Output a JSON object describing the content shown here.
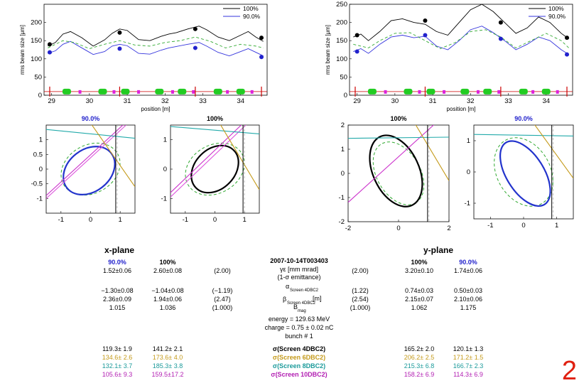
{
  "chart_data": [
    {
      "type": "line",
      "plane": "x",
      "ylabel": "rms beam size [μm]",
      "xlabel": "position [m]",
      "xlim": [
        28.8,
        34.7
      ],
      "ylim": [
        0,
        250
      ],
      "xticks": [
        "29",
        "30",
        "31",
        "32",
        "33",
        "34"
      ],
      "yticks": [
        "0",
        "50",
        "100",
        "150",
        "200"
      ],
      "legend": [
        "100%",
        "90.0%"
      ],
      "series": [
        {
          "name": "100%",
          "color": "#000000",
          "x": [
            28.9,
            29.1,
            29.3,
            29.5,
            29.8,
            30.1,
            30.4,
            30.6,
            30.8,
            31.0,
            31.3,
            31.6,
            31.9,
            32.1,
            32.3,
            32.6,
            32.9,
            33.1,
            33.4,
            33.7,
            34.0,
            34.2,
            34.4,
            34.6
          ],
          "values": [
            135,
            145,
            168,
            175,
            158,
            135,
            152,
            170,
            182,
            178,
            153,
            150,
            162,
            168,
            172,
            182,
            190,
            180,
            160,
            150,
            165,
            175,
            160,
            148
          ]
        },
        {
          "name": "90.0%",
          "color": "#3333dd",
          "x": [
            28.9,
            29.1,
            29.3,
            29.5,
            29.8,
            30.1,
            30.4,
            30.6,
            30.8,
            31.0,
            31.3,
            31.6,
            31.9,
            32.1,
            32.3,
            32.6,
            32.9,
            33.1,
            33.4,
            33.7,
            34.0,
            34.2,
            34.4,
            34.6
          ],
          "values": [
            115,
            122,
            140,
            148,
            130,
            112,
            120,
            135,
            140,
            136,
            115,
            113,
            124,
            130,
            134,
            140,
            145,
            135,
            118,
            108,
            120,
            128,
            118,
            108
          ]
        },
        {
          "name": "",
          "color": "#33aa33",
          "dashed": true,
          "x": [
            28.9,
            29.3,
            29.6,
            30.0,
            30.4,
            30.8,
            31.2,
            31.6,
            32.0,
            32.4,
            32.8,
            33.2,
            33.6,
            34.0,
            34.4,
            34.6
          ],
          "values": [
            130,
            150,
            145,
            128,
            140,
            150,
            138,
            135,
            145,
            150,
            160,
            148,
            130,
            140,
            135,
            130
          ]
        }
      ],
      "markers": [
        {
          "color": "#000000",
          "x": [
            28.95,
            30.8,
            32.8,
            34.55
          ],
          "values": [
            140,
            172,
            182,
            158
          ]
        },
        {
          "color": "#2222cc",
          "x": [
            28.95,
            30.8,
            32.8,
            34.55
          ],
          "values": [
            118,
            128,
            130,
            105
          ]
        }
      ]
    },
    {
      "type": "line",
      "plane": "y",
      "ylabel": "rms beam size [μm]",
      "xlabel": "position [m]",
      "xlim": [
        28.8,
        34.7
      ],
      "ylim": [
        0,
        250
      ],
      "xticks": [
        "29",
        "30",
        "31",
        "32",
        "33",
        "34"
      ],
      "yticks": [
        "0",
        "50",
        "100",
        "150",
        "200",
        "250"
      ],
      "legend": [
        "100%",
        "90.0%"
      ],
      "series": [
        {
          "name": "100%",
          "color": "#000000",
          "x": [
            28.9,
            29.1,
            29.3,
            29.6,
            29.9,
            30.2,
            30.5,
            30.8,
            31.1,
            31.4,
            31.7,
            32.0,
            32.3,
            32.6,
            32.9,
            33.2,
            33.5,
            33.8,
            34.1,
            34.4,
            34.6
          ],
          "values": [
            160,
            168,
            150,
            175,
            205,
            210,
            200,
            195,
            175,
            165,
            200,
            235,
            250,
            230,
            200,
            170,
            185,
            215,
            200,
            170,
            155
          ]
        },
        {
          "name": "90.0%",
          "color": "#3333dd",
          "x": [
            28.9,
            29.1,
            29.3,
            29.6,
            29.9,
            30.2,
            30.5,
            30.8,
            31.1,
            31.4,
            31.7,
            32.0,
            32.3,
            32.6,
            32.9,
            33.2,
            33.5,
            33.8,
            34.1,
            34.4,
            34.6
          ],
          "values": [
            120,
            128,
            115,
            140,
            160,
            165,
            158,
            162,
            135,
            125,
            150,
            180,
            190,
            172,
            150,
            125,
            140,
            160,
            150,
            125,
            112
          ]
        },
        {
          "name": "",
          "color": "#33aa33",
          "dashed": true,
          "x": [
            28.9,
            29.3,
            29.6,
            30.0,
            30.4,
            30.8,
            31.2,
            31.6,
            32.0,
            32.4,
            32.8,
            33.2,
            33.6,
            34.0,
            34.4,
            34.6
          ],
          "values": [
            140,
            130,
            150,
            170,
            172,
            150,
            128,
            145,
            175,
            180,
            160,
            130,
            150,
            170,
            150,
            130
          ]
        }
      ],
      "markers": [
        {
          "color": "#000000",
          "x": [
            29.0,
            30.8,
            32.8,
            34.55
          ],
          "values": [
            165,
            205,
            200,
            158
          ]
        },
        {
          "color": "#2222cc",
          "x": [
            29.0,
            30.8,
            32.8,
            34.55
          ],
          "values": [
            120,
            165,
            155,
            112
          ]
        }
      ]
    },
    {
      "type": "scatter",
      "title": "90.0%",
      "title_color": "#2222cc",
      "ellipse_color": "#2233cc",
      "xlim": [
        -1.5,
        1.5
      ],
      "ylim": [
        -1.5,
        1.5
      ],
      "xticks": [
        "-1",
        "0",
        "1"
      ],
      "yticks": [
        "-1",
        "-0.5",
        "0",
        "0.5",
        "1"
      ]
    },
    {
      "type": "scatter",
      "title": "100%",
      "title_color": "#000000",
      "ellipse_color": "#000000",
      "xlim": [
        -1.5,
        1.5
      ],
      "ylim": [
        -1.5,
        1.5
      ],
      "xticks": [
        "-1",
        "0",
        "1"
      ],
      "yticks": [
        "-1",
        "0",
        "1"
      ]
    },
    {
      "type": "scatter",
      "title": "100%",
      "title_color": "#000000",
      "ellipse_color": "#000000",
      "xlim": [
        -2,
        2
      ],
      "ylim": [
        -2,
        2
      ],
      "xticks": [
        "-2",
        "0",
        "2"
      ],
      "yticks": [
        "-2",
        "-1",
        "0",
        "1",
        "2"
      ]
    },
    {
      "type": "scatter",
      "title": "90.0%",
      "title_color": "#2222cc",
      "ellipse_color": "#2233cc",
      "xlim": [
        -1.5,
        1.5
      ],
      "ylim": [
        -1.5,
        1.5
      ],
      "xticks": [
        "-1",
        "0",
        "1"
      ],
      "yticks": [
        "-1",
        "0",
        "1"
      ]
    }
  ],
  "table": {
    "x_header": "x-plane",
    "y_header": "y-plane",
    "col_x90": "90.0%",
    "col_x100": "100%",
    "col_y100": "100%",
    "col_y90": "90.0%",
    "run_id": "2007-10-14T003403",
    "emit_label": "γε [mm mrad]",
    "emit_sub": "(1-σ emittance)",
    "alpha_label": "α",
    "alpha_sub": "Screen 4DBC2",
    "beta_label": "β",
    "beta_sub": "Screen 4DBC2",
    "beta_unit": "[m]",
    "bmag_label": "B",
    "bmag_sub": "mag",
    "energy": "energy = 129.63 MeV",
    "charge": "charge = 0.75 ± 0.02 nC",
    "bunch": "bunch # 1",
    "emit_x90": "1.52±0.06",
    "emit_x100": "2.60±0.08",
    "emit_xref": "(2.00)",
    "emit_yref": "(2.00)",
    "emit_y100": "3.20±0.10",
    "emit_y90": "1.74±0.06",
    "alpha_x90": "−1.30±0.08",
    "alpha_x100": "−1.04±0.08",
    "alpha_xref": "(−1.19)",
    "alpha_yref": "(1.22)",
    "alpha_y100": "0.74±0.03",
    "alpha_y90": "0.50±0.03",
    "beta_x90": "2.36±0.09",
    "beta_x100": "1.94±0.06",
    "beta_xref": "(2.47)",
    "beta_yref": "(2.54)",
    "beta_y100": "2.15±0.07",
    "beta_y90": "2.10±0.06",
    "bmag_x90": "1.015",
    "bmag_x100": "1.036",
    "bmag_xref": "(1.000)",
    "bmag_yref": "(1.000)",
    "bmag_y100": "1.062",
    "bmag_y90": "1.175",
    "sig": [
      {
        "label": "σ(Screen 4DBC2)",
        "x90": "119.3± 1.9",
        "x100": "141.2± 2.1",
        "y100": "165.2± 2.0",
        "y90": "120.1± 1.3",
        "color": "#000000"
      },
      {
        "label": "σ(Screen 6DBC2)",
        "x90": "134.6± 2.6",
        "x100": "173.6± 4.0",
        "y100": "206.2± 2.5",
        "y90": "171.2± 1.5",
        "color": "#c49a1a"
      },
      {
        "label": "σ(Screen 8DBC2)",
        "x90": "132.1± 3.7",
        "x100": "185.3± 3.8",
        "y100": "215.3± 6.8",
        "y90": "166.7± 2.3",
        "color": "#1b9a9a"
      },
      {
        "label": "σ(Screen 10DBC2)",
        "x90": "105.6± 9.3",
        "x100": "159.5±17.2",
        "y100": "158.2± 6.9",
        "y90": "114.3± 6.9",
        "color": "#b21eb2"
      }
    ],
    "page_number": "2"
  }
}
